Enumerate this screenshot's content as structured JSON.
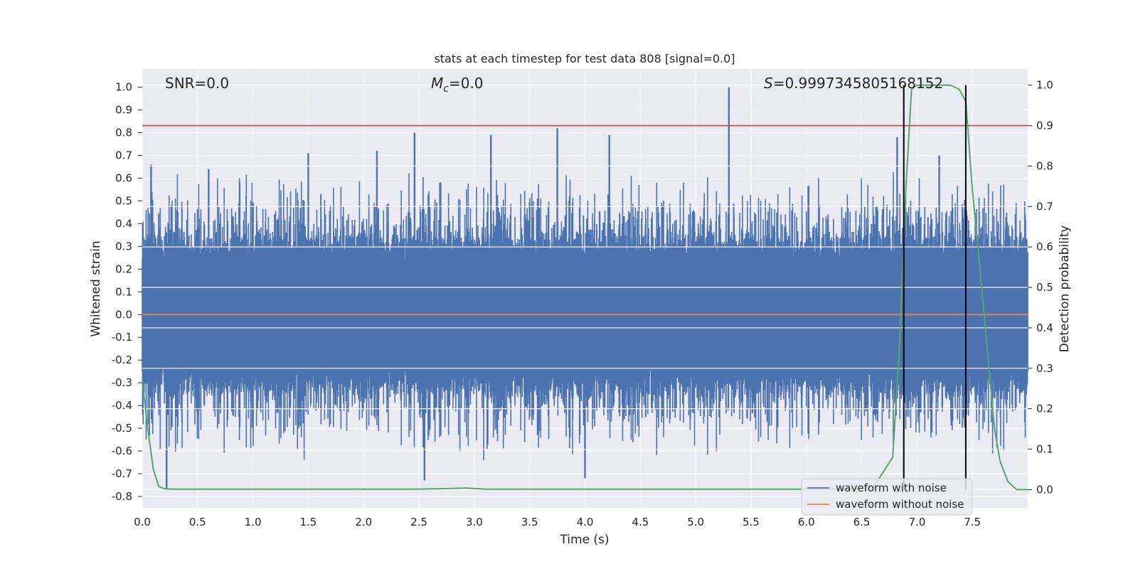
{
  "chart_data": {
    "type": "line",
    "title": "stats at each timestep for test data 808 [signal=0.0]",
    "xlabel": "Time (s)",
    "ylabel": "Whitened strain",
    "y2label": "Detection probability",
    "xlim": [
      0.0,
      8.0
    ],
    "ylim": [
      -0.85,
      1.08
    ],
    "y2lim": [
      -0.045,
      1.04
    ],
    "xticks": [
      "0.0",
      "0.5",
      "1.0",
      "1.5",
      "2.0",
      "2.5",
      "3.0",
      "3.5",
      "4.0",
      "4.5",
      "5.0",
      "5.5",
      "6.0",
      "6.5",
      "7.0",
      "7.5"
    ],
    "yticks": [
      "1.0",
      "0.9",
      "0.8",
      "0.7",
      "0.6",
      "0.5",
      "0.4",
      "0.3",
      "0.2",
      "0.1",
      "0.0",
      "-0.1",
      "-0.2",
      "-0.3",
      "-0.4",
      "-0.5",
      "-0.6",
      "-0.7",
      "-0.8"
    ],
    "y2ticks": [
      "1.0",
      "0.9",
      "0.8",
      "0.7",
      "0.6",
      "0.5",
      "0.4",
      "0.3",
      "0.2",
      "0.1",
      "0.0"
    ],
    "annotations": {
      "snr": "SNR=0.0",
      "mc_symbol": "M",
      "mc_sub": "c",
      "mc_value": "=0.0",
      "s_symbol": "S",
      "s_value": "=0.9997345805168152"
    },
    "threshold_line": {
      "y2": 0.9,
      "color": "#c44e52"
    },
    "vertical_lines": [
      6.88,
      7.44
    ],
    "series": [
      {
        "name": "waveform with noise",
        "color": "#4c72b0",
        "description": "dense noise trace, typical amplitude about ±0.45, peaks up to 1.0 near t=5.3 and down to -0.77 near t=0.22",
        "peaks": [
          {
            "t": 0.08,
            "v": 0.66
          },
          {
            "t": 0.22,
            "v": -0.77
          },
          {
            "t": 0.6,
            "v": 0.64
          },
          {
            "t": 1.5,
            "v": 0.71
          },
          {
            "t": 2.12,
            "v": 0.72
          },
          {
            "t": 2.46,
            "v": 0.8
          },
          {
            "t": 2.55,
            "v": -0.73
          },
          {
            "t": 3.15,
            "v": 0.79
          },
          {
            "t": 3.75,
            "v": 0.82
          },
          {
            "t": 4.0,
            "v": -0.72
          },
          {
            "t": 4.22,
            "v": 0.79
          },
          {
            "t": 5.3,
            "v": 1.0
          },
          {
            "t": 6.82,
            "v": 0.78
          },
          {
            "t": 7.2,
            "v": 0.7
          }
        ]
      },
      {
        "name": "waveform without noise",
        "color": "#dd8452",
        "x": [
          0.0,
          8.0
        ],
        "y": [
          0.0,
          0.0
        ]
      },
      {
        "name": "detection probability",
        "color": "#55a868",
        "axis": "y2",
        "x": [
          0.0,
          0.05,
          0.1,
          0.15,
          0.2,
          0.3,
          0.5,
          1.0,
          2.0,
          2.5,
          2.8,
          2.92,
          3.1,
          3.5,
          4.5,
          5.5,
          6.2,
          6.6,
          6.78,
          6.84,
          6.9,
          6.95,
          7.0,
          7.1,
          7.2,
          7.3,
          7.38,
          7.44,
          7.5,
          7.55,
          7.6,
          7.65,
          7.7,
          7.75,
          7.82,
          7.9,
          8.0
        ],
        "y": [
          0.27,
          0.15,
          0.05,
          0.008,
          0.002,
          0.001,
          0.001,
          0.001,
          0.001,
          0.001,
          0.003,
          0.004,
          0.001,
          0.001,
          0.001,
          0.001,
          0.001,
          0.003,
          0.08,
          0.35,
          0.75,
          0.99,
          1.0,
          1.0,
          1.0,
          1.0,
          0.99,
          0.96,
          0.74,
          0.6,
          0.45,
          0.3,
          0.15,
          0.07,
          0.02,
          0.0,
          0.0
        ]
      }
    ]
  },
  "legend": {
    "items": [
      {
        "label": "waveform with noise",
        "color": "#4c72b0"
      },
      {
        "label": "waveform without noise",
        "color": "#dd8452"
      }
    ]
  }
}
